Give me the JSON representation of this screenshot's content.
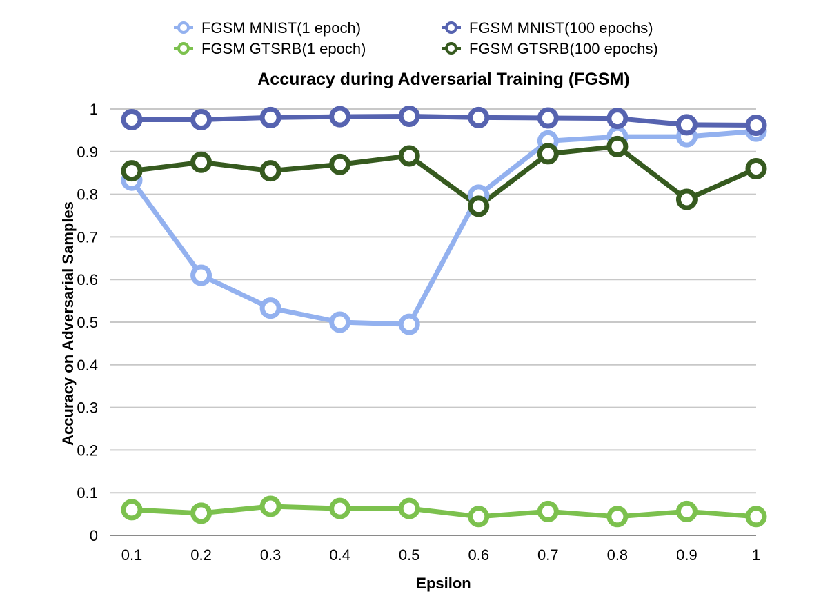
{
  "chart_data": {
    "type": "line",
    "title": "Accuracy during Adversarial Training (FGSM)",
    "xlabel": "Epsilon",
    "ylabel": "Accuracy on Adversarial Samples",
    "categories": [
      "0.1",
      "0.2",
      "0.3",
      "0.4",
      "0.5",
      "0.6",
      "0.7",
      "0.8",
      "0.9",
      "1"
    ],
    "yticks": [
      "0",
      "0.1",
      "0.2",
      "0.3",
      "0.4",
      "0.5",
      "0.6",
      "0.7",
      "0.8",
      "0.9",
      "1"
    ],
    "ylim": [
      0,
      1
    ],
    "grid": true,
    "legend_position": "top",
    "series": [
      {
        "name": "FGSM MNIST(1 epoch)",
        "color": "#93b1ef",
        "values": [
          0.833,
          0.61,
          0.533,
          0.5,
          0.495,
          0.798,
          0.925,
          0.935,
          0.935,
          0.948
        ]
      },
      {
        "name": "FGSM MNIST(100 epochs)",
        "color": "#5663b0",
        "values": [
          0.975,
          0.975,
          0.98,
          0.982,
          0.983,
          0.98,
          0.979,
          0.978,
          0.963,
          0.962
        ]
      },
      {
        "name": "FGSM GTSRB(1 epoch)",
        "color": "#7cc14e",
        "values": [
          0.06,
          0.052,
          0.068,
          0.063,
          0.063,
          0.044,
          0.056,
          0.044,
          0.056,
          0.044
        ]
      },
      {
        "name": "FGSM GTSRB(100 epochs)",
        "color": "#365a1f",
        "values": [
          0.855,
          0.875,
          0.855,
          0.87,
          0.89,
          0.772,
          0.895,
          0.912,
          0.788,
          0.86
        ]
      }
    ]
  }
}
